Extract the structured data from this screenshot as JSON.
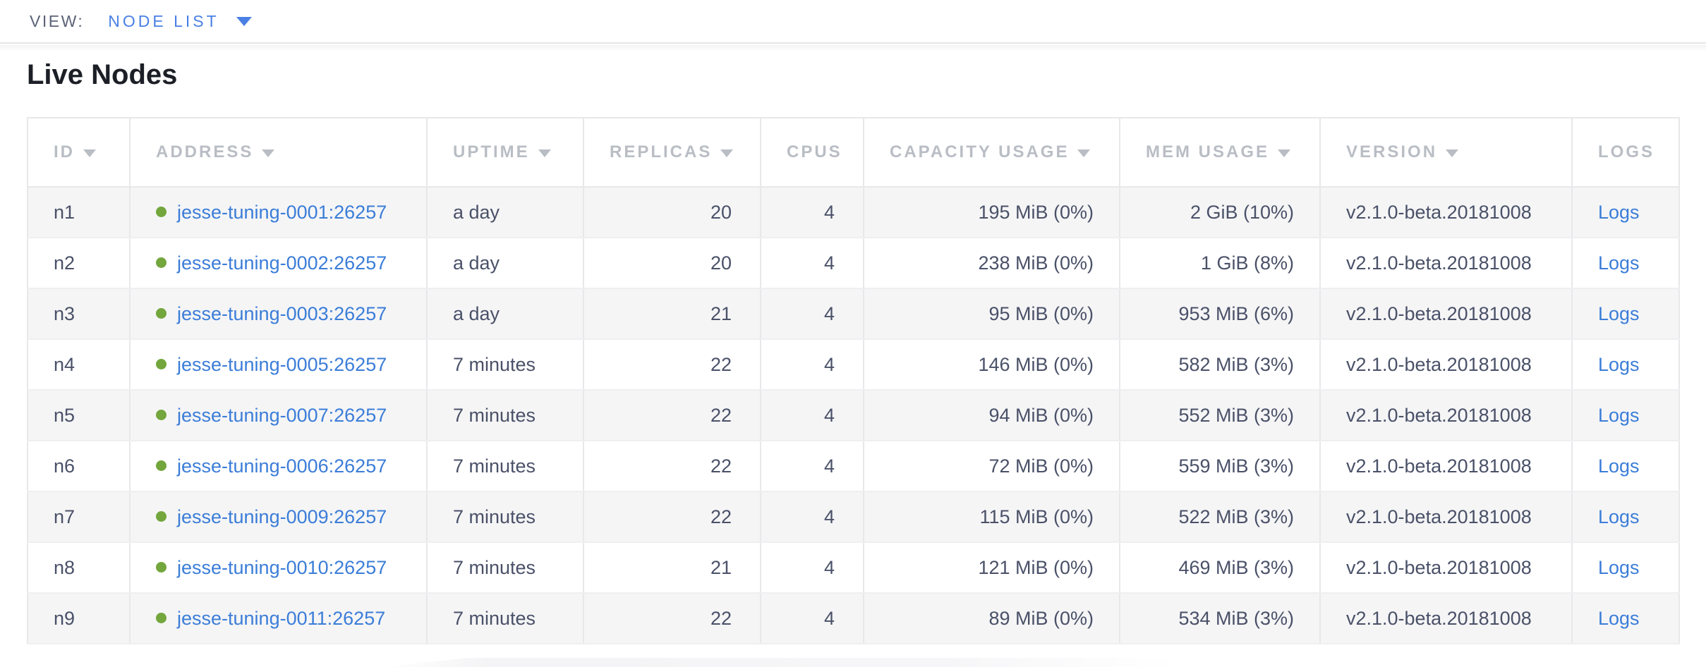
{
  "view_bar": {
    "label": "VIEW:",
    "selected": "NODE LIST"
  },
  "page": {
    "title": "Live Nodes"
  },
  "table": {
    "columns": [
      {
        "key": "id",
        "label": "ID",
        "sorted": true
      },
      {
        "key": "address",
        "label": "ADDRESS",
        "sorted": true
      },
      {
        "key": "uptime",
        "label": "UPTIME",
        "sorted": true
      },
      {
        "key": "replicas",
        "label": "REPLICAS",
        "sorted": true
      },
      {
        "key": "cpus",
        "label": "CPUS",
        "sorted": false
      },
      {
        "key": "capacity",
        "label": "CAPACITY USAGE",
        "sorted": true
      },
      {
        "key": "mem",
        "label": "MEM USAGE",
        "sorted": true
      },
      {
        "key": "version",
        "label": "VERSION",
        "sorted": true
      },
      {
        "key": "logs",
        "label": "LOGS",
        "sorted": false
      }
    ],
    "rows": [
      {
        "id": "n1",
        "status": "live",
        "address": "jesse-tuning-0001:26257",
        "uptime": "a day",
        "replicas": "20",
        "cpus": "4",
        "capacity": "195 MiB (0%)",
        "mem": "2 GiB (10%)",
        "version": "v2.1.0-beta.20181008",
        "logs": "Logs"
      },
      {
        "id": "n2",
        "status": "live",
        "address": "jesse-tuning-0002:26257",
        "uptime": "a day",
        "replicas": "20",
        "cpus": "4",
        "capacity": "238 MiB (0%)",
        "mem": "1 GiB (8%)",
        "version": "v2.1.0-beta.20181008",
        "logs": "Logs"
      },
      {
        "id": "n3",
        "status": "live",
        "address": "jesse-tuning-0003:26257",
        "uptime": "a day",
        "replicas": "21",
        "cpus": "4",
        "capacity": "95 MiB (0%)",
        "mem": "953 MiB (6%)",
        "version": "v2.1.0-beta.20181008",
        "logs": "Logs"
      },
      {
        "id": "n4",
        "status": "live",
        "address": "jesse-tuning-0005:26257",
        "uptime": "7 minutes",
        "replicas": "22",
        "cpus": "4",
        "capacity": "146 MiB (0%)",
        "mem": "582 MiB (3%)",
        "version": "v2.1.0-beta.20181008",
        "logs": "Logs"
      },
      {
        "id": "n5",
        "status": "live",
        "address": "jesse-tuning-0007:26257",
        "uptime": "7 minutes",
        "replicas": "22",
        "cpus": "4",
        "capacity": "94 MiB (0%)",
        "mem": "552 MiB (3%)",
        "version": "v2.1.0-beta.20181008",
        "logs": "Logs"
      },
      {
        "id": "n6",
        "status": "live",
        "address": "jesse-tuning-0006:26257",
        "uptime": "7 minutes",
        "replicas": "22",
        "cpus": "4",
        "capacity": "72 MiB (0%)",
        "mem": "559 MiB (3%)",
        "version": "v2.1.0-beta.20181008",
        "logs": "Logs"
      },
      {
        "id": "n7",
        "status": "live",
        "address": "jesse-tuning-0009:26257",
        "uptime": "7 minutes",
        "replicas": "22",
        "cpus": "4",
        "capacity": "115 MiB (0%)",
        "mem": "522 MiB (3%)",
        "version": "v2.1.0-beta.20181008",
        "logs": "Logs"
      },
      {
        "id": "n8",
        "status": "live",
        "address": "jesse-tuning-0010:26257",
        "uptime": "7 minutes",
        "replicas": "21",
        "cpus": "4",
        "capacity": "121 MiB (0%)",
        "mem": "469 MiB (3%)",
        "version": "v2.1.0-beta.20181008",
        "logs": "Logs"
      },
      {
        "id": "n9",
        "status": "live",
        "address": "jesse-tuning-0011:26257",
        "uptime": "7 minutes",
        "replicas": "22",
        "cpus": "4",
        "capacity": "89 MiB (0%)",
        "mem": "534 MiB (3%)",
        "version": "v2.1.0-beta.20181008",
        "logs": "Logs"
      }
    ]
  },
  "colors": {
    "link_blue": "#3b7dd8",
    "accent_blue": "#4a80e4",
    "healthy_dot_green": "#73a63c",
    "header_gray": "#b9bdc4",
    "cell_text": "#4a5168"
  }
}
